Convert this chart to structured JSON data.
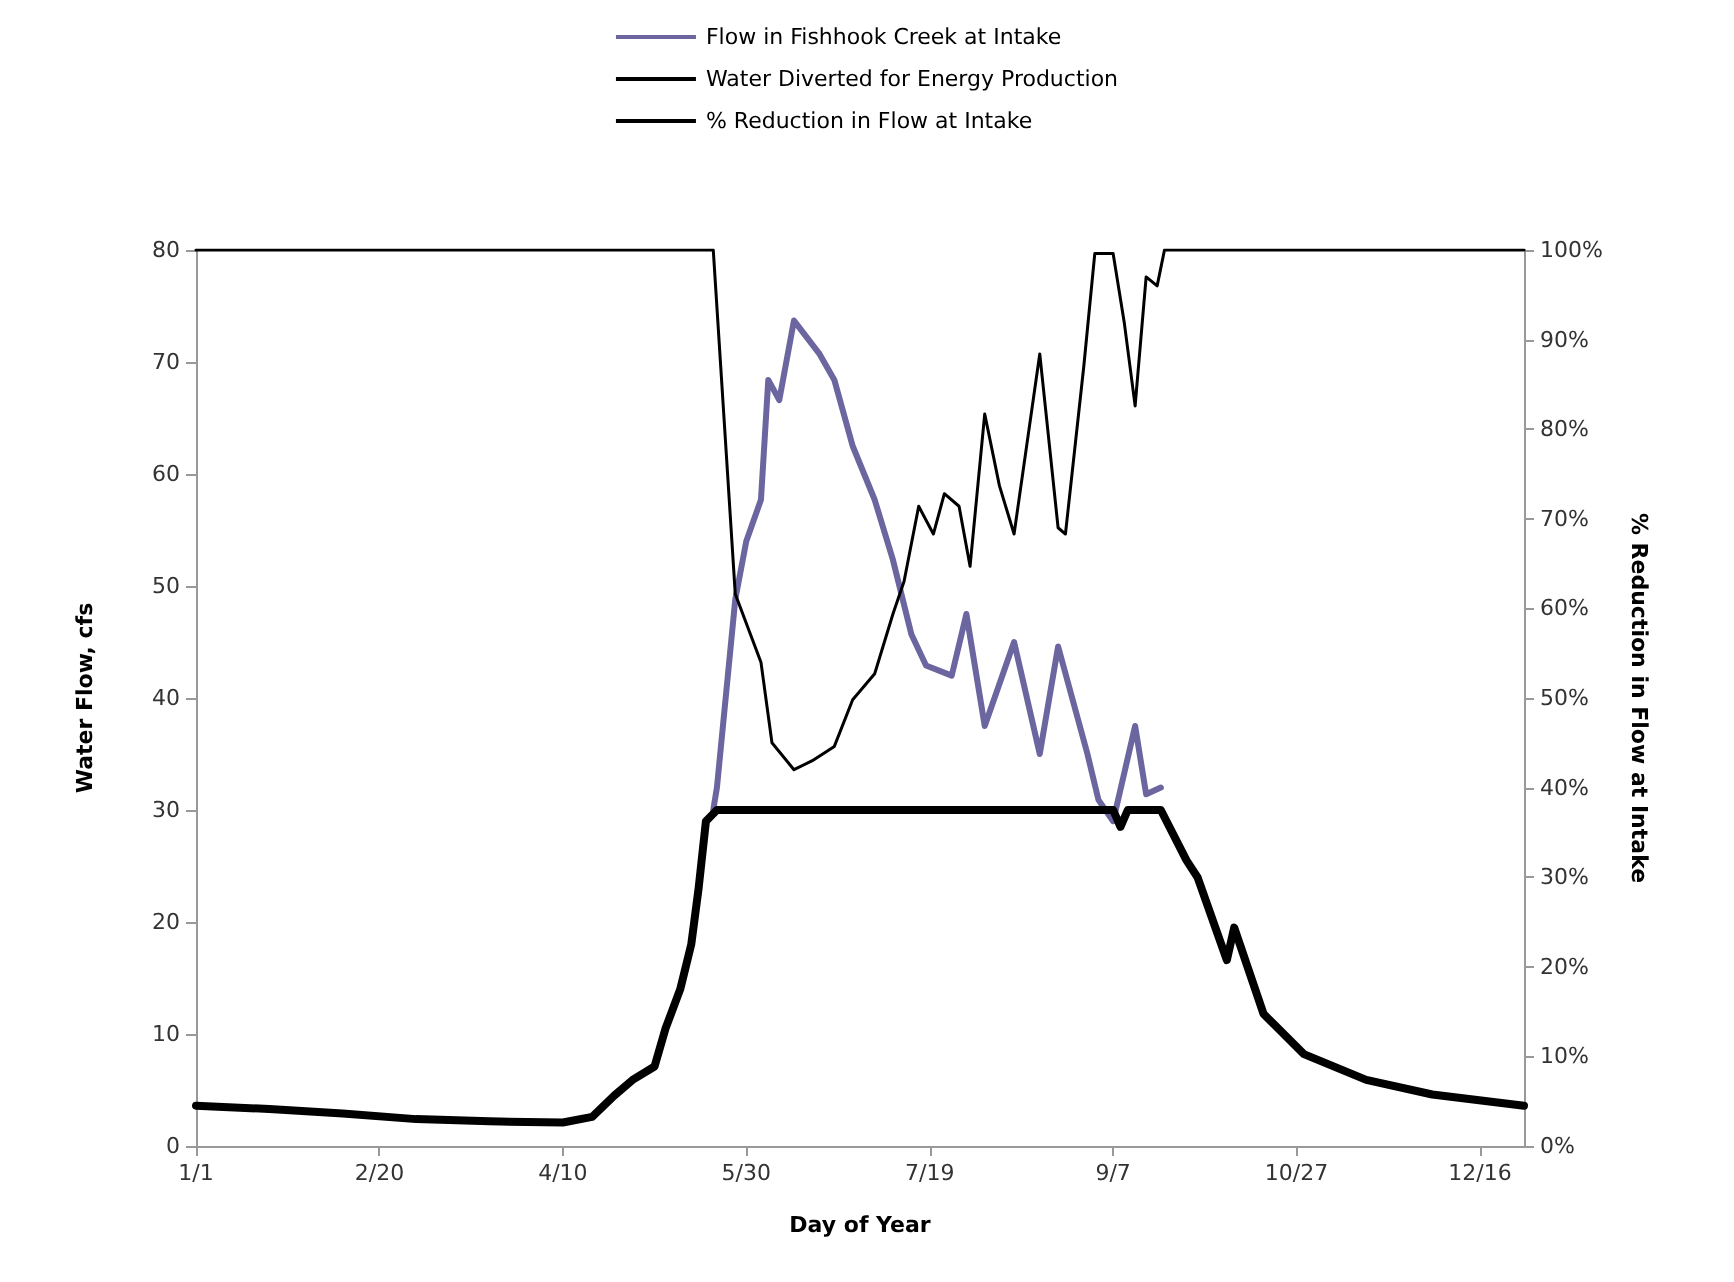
{
  "chart_data": {
    "type": "line",
    "xlabel": "Day of Year",
    "ylabel": "Water Flow, cfs",
    "y2label": "% Reduction in Flow at Intake",
    "xlim": [
      "--01-01",
      "--12-28"
    ],
    "xticks": [
      {
        "value": "--01-01",
        "label": "1/1"
      },
      {
        "value": "--02-20",
        "label": "2/20"
      },
      {
        "value": "--04-10",
        "label": "4/10"
      },
      {
        "value": "--05-30",
        "label": "5/30"
      },
      {
        "value": "--07-19",
        "label": "7/19"
      },
      {
        "value": "--09-07",
        "label": "9/7"
      },
      {
        "value": "--10-27",
        "label": "10/27"
      },
      {
        "value": "--12-16",
        "label": "12/16"
      }
    ],
    "ylim": [
      0,
      80
    ],
    "yticks": [
      0,
      10,
      20,
      30,
      40,
      50,
      60,
      70,
      80
    ],
    "y2lim": [
      0,
      100
    ],
    "y2ticks": [
      {
        "value": 0,
        "label": "0%"
      },
      {
        "value": 10,
        "label": "10%"
      },
      {
        "value": 20,
        "label": "20%"
      },
      {
        "value": 30,
        "label": "30%"
      },
      {
        "value": 40,
        "label": "40%"
      },
      {
        "value": 50,
        "label": "50%"
      },
      {
        "value": 60,
        "label": "60%"
      },
      {
        "value": 70,
        "label": "70%"
      },
      {
        "value": 80,
        "label": "80%"
      },
      {
        "value": 90,
        "label": "90%"
      },
      {
        "value": 100,
        "label": "100%"
      }
    ],
    "grid": false,
    "legend": "top",
    "marker": "none",
    "line_style": "solid",
    "series": [
      {
        "name": "Flow in Fishhook Creek at Intake",
        "color": "#6b65a0",
        "x": [
          "--05-21",
          "--05-22",
          "--05-27",
          "--05-30",
          "--06-03",
          "--06-05",
          "--06-08",
          "--06-12",
          "--06-19",
          "--06-23",
          "--06-28",
          "--07-04",
          "--07-09",
          "--07-14",
          "--07-18",
          "--07-25",
          "--07-29",
          "--08-03",
          "--08-11",
          "--08-18",
          "--08-23",
          "--08-31",
          "--09-03",
          "--09-07",
          "--09-13",
          "--09-16",
          "--09-20"
        ],
        "values": [
          30,
          32,
          48.8,
          54,
          57.7,
          68.4,
          66.6,
          73.7,
          70.7,
          68.4,
          62.5,
          57.7,
          52.3,
          45.7,
          42.9,
          42,
          47.5,
          37.5,
          45,
          35,
          44.6,
          35,
          30.9,
          29,
          37.5,
          31.4,
          32
        ]
      },
      {
        "name": "Water Diverted for Energy Production",
        "color": "#000000",
        "x": [
          "--01-01",
          "--01-21",
          "--02-10",
          "--03-01",
          "--03-21",
          "--04-10",
          "--04-18",
          "--04-24",
          "--04-29",
          "--05-05",
          "--05-08",
          "--05-12",
          "--05-15",
          "--05-17",
          "--05-19",
          "--05-22",
          "--09-07",
          "--09-09",
          "--09-11",
          "--09-20",
          "--09-27",
          "--09-30",
          "--10-08",
          "--10-10",
          "--10-18",
          "--10-29",
          "--11-15",
          "--12-03",
          "--12-28"
        ],
        "values": [
          3.6,
          3.3,
          2.9,
          2.4,
          2.2,
          2.1,
          2.6,
          4.5,
          5.9,
          7.1,
          10.5,
          14,
          18,
          23,
          29,
          30,
          30,
          28.5,
          30,
          30,
          25.5,
          24,
          16.6,
          19.5,
          11.8,
          8.2,
          5.9,
          4.6,
          3.6
        ]
      },
      {
        "name": "% Reduction in Flow at Intake",
        "color": "#000000",
        "axis": "y2",
        "x": [
          "--01-01",
          "--05-20",
          "--05-21",
          "--05-27",
          "--06-03",
          "--06-06",
          "--06-12",
          "--06-17",
          "--06-23",
          "--06-28",
          "--07-04",
          "--07-09",
          "--07-12",
          "--07-16",
          "--07-20",
          "--07-23",
          "--07-27",
          "--07-30",
          "--08-03",
          "--08-07",
          "--08-11",
          "--08-18",
          "--08-23",
          "--08-25",
          "--08-30",
          "--09-02",
          "--09-07",
          "--09-10",
          "--09-13",
          "--09-16",
          "--09-19",
          "--09-21",
          "--12-28"
        ],
        "values": [
          100,
          100,
          100,
          61.6,
          54,
          45,
          42,
          43,
          44.6,
          49.8,
          52.7,
          59.4,
          63,
          71.4,
          68.3,
          72.8,
          71.4,
          64.7,
          81.7,
          73.7,
          68.3,
          88.4,
          69,
          68.3,
          87,
          99.6,
          99.6,
          92,
          82.6,
          97,
          96,
          100,
          100
        ]
      }
    ]
  }
}
